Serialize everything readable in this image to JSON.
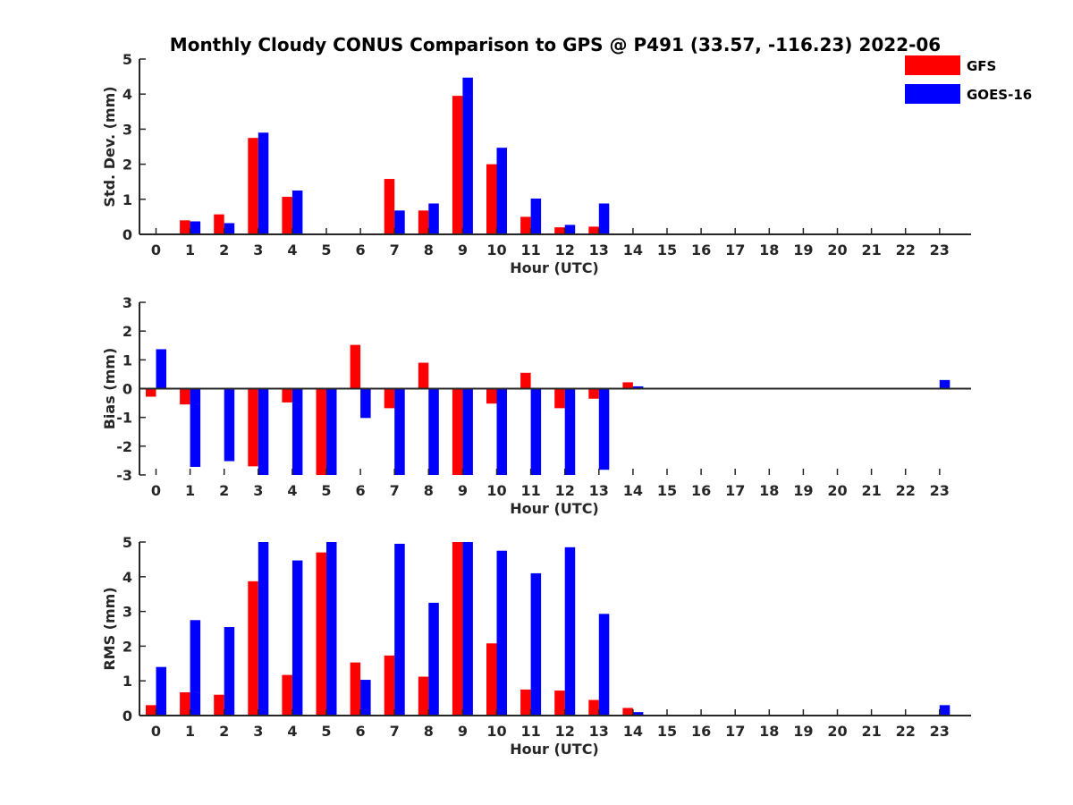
{
  "title": "Monthly Cloudy CONUS Comparison to GPS @ P491 (33.57, -116.23) 2022-06",
  "legend": [
    {
      "name": "GFS",
      "color": "#ff0000"
    },
    {
      "name": "GOES-16",
      "color": "#0000ff"
    }
  ],
  "legend_placement": "top-right",
  "chart_data": [
    {
      "type": "bar",
      "categories": [
        "0",
        "1",
        "2",
        "3",
        "4",
        "5",
        "6",
        "7",
        "8",
        "9",
        "10",
        "11",
        "12",
        "13",
        "14",
        "15",
        "16",
        "17",
        "18",
        "19",
        "20",
        "21",
        "22",
        "23"
      ],
      "xlabel": "Hour (UTC)",
      "ylabel": "Std. Dev. (mm)",
      "ylim": [
        0,
        5
      ],
      "yticks": [
        "0",
        "1",
        "2",
        "3",
        "4",
        "5"
      ],
      "series": [
        {
          "name": "GFS",
          "color": "#ff0000",
          "values": [
            0,
            0.4,
            0.57,
            2.75,
            1.07,
            0,
            0,
            1.58,
            0.68,
            3.95,
            2.0,
            0.5,
            0.2,
            0.22,
            0,
            0,
            0,
            0,
            0,
            0,
            0,
            0,
            0,
            0
          ]
        },
        {
          "name": "GOES-16",
          "color": "#0000ff",
          "values": [
            0,
            0.37,
            0.32,
            2.9,
            1.25,
            0,
            0,
            0.68,
            0.88,
            4.47,
            2.47,
            1.02,
            0.27,
            0.88,
            0,
            0,
            0,
            0,
            0,
            0,
            0,
            0,
            0,
            0
          ]
        }
      ]
    },
    {
      "type": "bar",
      "categories": [
        "0",
        "1",
        "2",
        "3",
        "4",
        "5",
        "6",
        "7",
        "8",
        "9",
        "10",
        "11",
        "12",
        "13",
        "14",
        "15",
        "16",
        "17",
        "18",
        "19",
        "20",
        "21",
        "22",
        "23"
      ],
      "xlabel": "Hour (UTC)",
      "ylabel": "Bias (mm)",
      "ylim": [
        -3,
        3
      ],
      "yticks": [
        "-3",
        "-2",
        "-1",
        "0",
        "1",
        "2",
        "3"
      ],
      "series": [
        {
          "name": "GFS",
          "color": "#ff0000",
          "values": [
            -0.28,
            -0.55,
            0,
            -2.7,
            -0.48,
            -3.0,
            1.52,
            -0.68,
            0.9,
            -3.0,
            -0.52,
            0.55,
            -0.68,
            -0.35,
            0.22,
            0,
            0,
            0,
            0,
            0,
            0,
            0,
            0,
            0.02
          ]
        },
        {
          "name": "GOES-16",
          "color": "#0000ff",
          "values": [
            1.37,
            -2.72,
            -2.52,
            -3.0,
            -3.0,
            -3.0,
            -1.02,
            -3.0,
            -3.0,
            -3.0,
            -3.0,
            -3.0,
            -3.0,
            -2.82,
            0.08,
            0,
            0,
            0,
            0,
            0,
            0,
            0,
            0,
            0.3
          ]
        }
      ]
    },
    {
      "type": "bar",
      "categories": [
        "0",
        "1",
        "2",
        "3",
        "4",
        "5",
        "6",
        "7",
        "8",
        "9",
        "10",
        "11",
        "12",
        "13",
        "14",
        "15",
        "16",
        "17",
        "18",
        "19",
        "20",
        "21",
        "22",
        "23"
      ],
      "xlabel": "Hour (UTC)",
      "ylabel": "RMS (mm)",
      "ylim": [
        0,
        5
      ],
      "yticks": [
        "0",
        "1",
        "2",
        "3",
        "4",
        "5"
      ],
      "series": [
        {
          "name": "GFS",
          "color": "#ff0000",
          "values": [
            0.3,
            0.67,
            0.6,
            3.87,
            1.17,
            4.7,
            1.53,
            1.73,
            1.12,
            5.0,
            2.08,
            0.75,
            0.72,
            0.45,
            0.22,
            0,
            0,
            0,
            0,
            0,
            0,
            0,
            0,
            0.02
          ]
        },
        {
          "name": "GOES-16",
          "color": "#0000ff",
          "values": [
            1.4,
            2.75,
            2.55,
            5.0,
            4.47,
            5.0,
            1.03,
            4.95,
            3.25,
            5.0,
            4.75,
            4.1,
            4.85,
            2.93,
            0.1,
            0,
            0,
            0,
            0,
            0,
            0,
            0,
            0,
            0.3
          ]
        }
      ]
    }
  ]
}
